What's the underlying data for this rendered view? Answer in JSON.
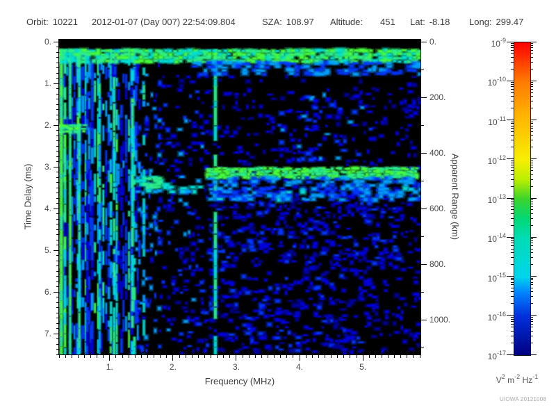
{
  "header": {
    "orbit": {
      "label": "Orbit:",
      "value": "10221"
    },
    "datetime": "2012-01-07 (Day 007) 22:54:09.804",
    "sza": {
      "label": "SZA:",
      "value": "108.97"
    },
    "altitude": {
      "label": "Altitude:",
      "value": "451"
    },
    "lat": {
      "label": "Lat:",
      "value": "-8.18"
    },
    "long": {
      "label": "Long:",
      "value": "299.47"
    }
  },
  "chart_data": {
    "type": "heatmap",
    "title": "",
    "xlabel": "Frequency (MHz)",
    "ylabel_left": "Time Delay (ms)",
    "ylabel_right": "Apparent Range (km)",
    "x_axis": {
      "range": [
        0.2,
        5.91
      ],
      "major_ticks": [
        1,
        2,
        3,
        4,
        5
      ],
      "tick_labels": [
        "1.",
        "2.",
        "3.",
        "4.",
        "5."
      ],
      "minor_step": 0.1
    },
    "y_axis_left": {
      "range": [
        0,
        7.5
      ],
      "major_ticks": [
        0,
        1,
        2,
        3,
        4,
        5,
        6,
        7
      ],
      "tick_labels": [
        "0.",
        "1.",
        "2.",
        "3.",
        "4.",
        "5.",
        "6.",
        "7."
      ],
      "minor_step": 0.125
    },
    "y_axis_right": {
      "range": [
        0,
        1125
      ],
      "major_ticks": [
        0,
        200,
        400,
        600,
        800,
        1000
      ],
      "tick_labels": [
        "0.",
        "200.",
        "400.",
        "600.",
        "800.",
        "1000."
      ],
      "minor_step": 100
    },
    "colorbar": {
      "scale": "log",
      "max": "1e-9",
      "min": "1e-17",
      "tick_exponents": [
        -9,
        -10,
        -11,
        -12,
        -13,
        -14,
        -15,
        -16,
        -17
      ],
      "unit_parts": [
        [
          "V",
          "2"
        ],
        [
          "m",
          "-2"
        ],
        [
          "Hz",
          "-1"
        ]
      ],
      "gradient": [
        [
          0,
          "#ff0000"
        ],
        [
          0.125,
          "#ff7a00"
        ],
        [
          0.25,
          "#ffbb00"
        ],
        [
          0.375,
          "#f8ee00"
        ],
        [
          0.44,
          "#baee00"
        ],
        [
          0.5,
          "#3cd42c"
        ],
        [
          0.565,
          "#00d878"
        ],
        [
          0.625,
          "#00dcb4"
        ],
        [
          0.75,
          "#00d4ec"
        ],
        [
          0.8,
          "#0084ff"
        ],
        [
          0.875,
          "#0030dc"
        ],
        [
          1,
          "#000080"
        ]
      ]
    },
    "spectrogram": {
      "seed": 20121008,
      "background": "#000000",
      "palette": [
        "#0000a0",
        "#0000e4",
        "#0038ff",
        "#00a0ff",
        "#00e0d8",
        "#2cf08c",
        "#48ff3c",
        "#b8ff20"
      ],
      "speckle_regions": [
        {
          "name": "base-field",
          "f": [
            1.8,
            5.91
          ],
          "t": [
            0.85,
            7.5
          ],
          "density": 0.15,
          "levels": [
            0,
            1.4
          ],
          "size": [
            5,
            4
          ]
        },
        {
          "name": "below-echo-scatter",
          "f": [
            2.6,
            5.6
          ],
          "t": [
            3.5,
            5.5
          ],
          "density": 0.3,
          "levels": [
            0,
            2.2
          ],
          "size": [
            6,
            4
          ]
        },
        {
          "name": "lower-mid-field",
          "f": [
            2.6,
            5.25
          ],
          "t": [
            5.5,
            7.5
          ],
          "density": 0.27,
          "levels": [
            0,
            2
          ],
          "size": [
            6,
            4
          ]
        },
        {
          "name": "upper-right-cluster",
          "f": [
            3.6,
            5.15
          ],
          "t": [
            1.3,
            2.85
          ],
          "density": 0.2,
          "levels": [
            0.5,
            3
          ],
          "size": [
            6,
            4
          ]
        },
        {
          "name": "gap-zone",
          "f": [
            1.8,
            2.55
          ],
          "t": [
            1.1,
            7.5
          ],
          "density": 0.1,
          "levels": [
            0.5,
            3
          ],
          "size": [
            5,
            4
          ]
        },
        {
          "name": "far-right-sparse",
          "f": [
            5.55,
            5.91
          ],
          "t": [
            0.9,
            7.5
          ],
          "density": 0.1,
          "levels": [
            0,
            1.2
          ],
          "size": [
            5,
            4
          ]
        },
        {
          "name": "forest-edge-speckle",
          "f": [
            1.45,
            1.8
          ],
          "t": [
            0.5,
            7.5
          ],
          "density": 0.25,
          "levels": [
            1,
            3.5
          ],
          "size": [
            4,
            5
          ]
        }
      ],
      "stripe_forest": {
        "f": [
          0.2,
          1.5
        ],
        "t": [
          0.18,
          7.5
        ],
        "bright_fraction": 0.3,
        "coverage": [
          0.55,
          0.95
        ],
        "col_step": [
          2,
          4.5
        ]
      },
      "isolated_stripes": [
        {
          "f": 0.235,
          "width": 4,
          "levels": [
            5,
            6.5
          ],
          "coverage": 0.97
        },
        {
          "f": 0.295,
          "width": 3,
          "levels": [
            4,
            6
          ],
          "coverage": 0.85
        },
        {
          "f": 0.375,
          "width": 3,
          "levels": [
            4.5,
            6.2
          ],
          "coverage": 0.9
        },
        {
          "f": 0.52,
          "width": 3,
          "levels": [
            3.5,
            5.5
          ],
          "coverage": 0.8
        },
        {
          "f": 0.84,
          "width": 3,
          "levels": [
            3,
            5
          ],
          "coverage": 0.7
        },
        {
          "f": 1.07,
          "width": 3,
          "levels": [
            3.5,
            5.5
          ],
          "coverage": 0.75
        },
        {
          "f": 1.36,
          "width": 3.5,
          "levels": [
            3.5,
            5.8
          ],
          "coverage": 0.85
        },
        {
          "f": 1.54,
          "width": 3,
          "levels": [
            3,
            5
          ],
          "coverage": 0.6
        },
        {
          "f": 2.67,
          "width": 4,
          "levels": [
            3.5,
            5
          ],
          "coverage": 0.8
        }
      ],
      "bands": [
        {
          "name": "top-noise-band",
          "t": [
            0.22,
            0.52
          ],
          "f": [
            0.2,
            5.91
          ],
          "levels": [
            4,
            6.3
          ],
          "coverage": 0.96,
          "cell": [
            7,
            5
          ]
        },
        {
          "name": "top-band-blue-fringe",
          "t": [
            0.52,
            0.82
          ],
          "f": [
            2.35,
            5.91
          ],
          "levels": [
            1.8,
            3.2
          ],
          "coverage": 0.6,
          "cell": [
            7,
            5
          ]
        },
        {
          "name": "echo-left-fragments",
          "t": [
            3.25,
            3.6
          ],
          "f": [
            1.45,
            2.6
          ],
          "levels": [
            3,
            4.5
          ],
          "coverage": 0.28,
          "cell": [
            8,
            5
          ]
        },
        {
          "name": "echo-left-bright-blob",
          "t": [
            3.28,
            3.5
          ],
          "f": [
            1.58,
            1.78
          ],
          "levels": [
            4.5,
            5.5
          ],
          "coverage": 0.9,
          "cell": [
            6,
            4
          ]
        },
        {
          "name": "surface-reflection-echo",
          "t": [
            3.05,
            3.28
          ],
          "f": [
            2.55,
            5.91
          ],
          "levels": [
            4.8,
            6.3
          ],
          "coverage": 0.97,
          "cell": [
            6,
            4
          ]
        },
        {
          "name": "echo-halo",
          "t": [
            3.28,
            3.8
          ],
          "f": [
            2.6,
            5.91
          ],
          "levels": [
            2,
            3.6
          ],
          "coverage": 0.5,
          "cell": [
            7,
            5
          ]
        },
        {
          "name": "left-resonance-line",
          "t": [
            2.02,
            2.2
          ],
          "f": [
            0.2,
            0.62
          ],
          "levels": [
            4.5,
            6
          ],
          "coverage": 0.9,
          "cell": [
            6,
            4
          ]
        }
      ]
    }
  },
  "footer": {
    "credit": "UIOWA 20121008"
  }
}
